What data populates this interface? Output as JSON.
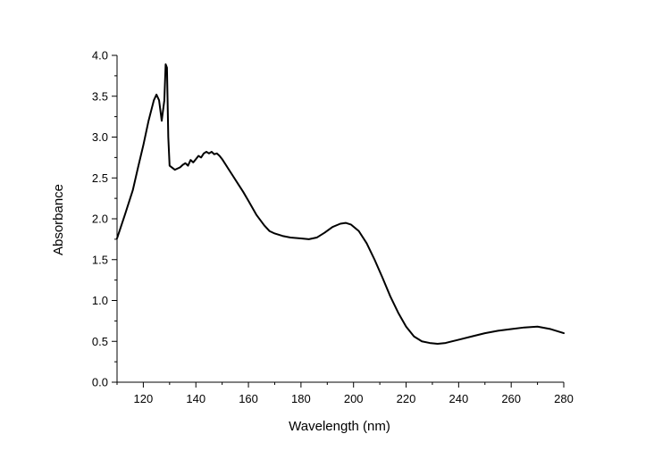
{
  "chart_data": {
    "type": "line",
    "title": "",
    "xlabel": "Wavelength (nm)",
    "ylabel": "Absorbance",
    "xlim": [
      110,
      280
    ],
    "ylim": [
      0.0,
      4.0
    ],
    "x_ticks": [
      120,
      140,
      160,
      180,
      200,
      220,
      240,
      260,
      280
    ],
    "x_tick_labels": [
      "120",
      "140",
      "160",
      "180",
      "200",
      "220",
      "240",
      "260",
      "280"
    ],
    "y_ticks": [
      0.0,
      0.5,
      1.0,
      1.5,
      2.0,
      2.5,
      3.0,
      3.5,
      4.0
    ],
    "y_tick_labels": [
      "0.0",
      "0.5",
      "1.0",
      "1.5",
      "2.0",
      "2.5",
      "3.0",
      "3.5",
      "4.0"
    ],
    "grid": false,
    "legend": "none",
    "series": [
      {
        "color": "#000000",
        "x": [
          110,
          113,
          116,
          118,
          120,
          122,
          124,
          125,
          126,
          127,
          128,
          128.5,
          129,
          129.5,
          130,
          132,
          134,
          135,
          136,
          137,
          138,
          139,
          140,
          141,
          142,
          143,
          144,
          145,
          146,
          147,
          148,
          149,
          150,
          152,
          154,
          156,
          158,
          160,
          163,
          166,
          168,
          170,
          173,
          176,
          180,
          183,
          186,
          189,
          192,
          195,
          197,
          199,
          202,
          205,
          208,
          211,
          214,
          217,
          220,
          223,
          226,
          229,
          232,
          235,
          240,
          245,
          250,
          255,
          260,
          265,
          270,
          275,
          280
        ],
        "y": [
          1.76,
          2.05,
          2.35,
          2.63,
          2.9,
          3.2,
          3.45,
          3.52,
          3.45,
          3.2,
          3.45,
          3.89,
          3.85,
          3.0,
          2.65,
          2.6,
          2.63,
          2.66,
          2.68,
          2.65,
          2.72,
          2.69,
          2.73,
          2.77,
          2.75,
          2.8,
          2.82,
          2.8,
          2.82,
          2.79,
          2.8,
          2.77,
          2.73,
          2.63,
          2.53,
          2.43,
          2.33,
          2.22,
          2.05,
          1.92,
          1.85,
          1.82,
          1.79,
          1.77,
          1.76,
          1.75,
          1.77,
          1.83,
          1.9,
          1.94,
          1.95,
          1.93,
          1.85,
          1.7,
          1.5,
          1.28,
          1.05,
          0.85,
          0.68,
          0.56,
          0.5,
          0.48,
          0.47,
          0.48,
          0.52,
          0.56,
          0.6,
          0.63,
          0.65,
          0.67,
          0.68,
          0.65,
          0.6
        ]
      }
    ]
  }
}
